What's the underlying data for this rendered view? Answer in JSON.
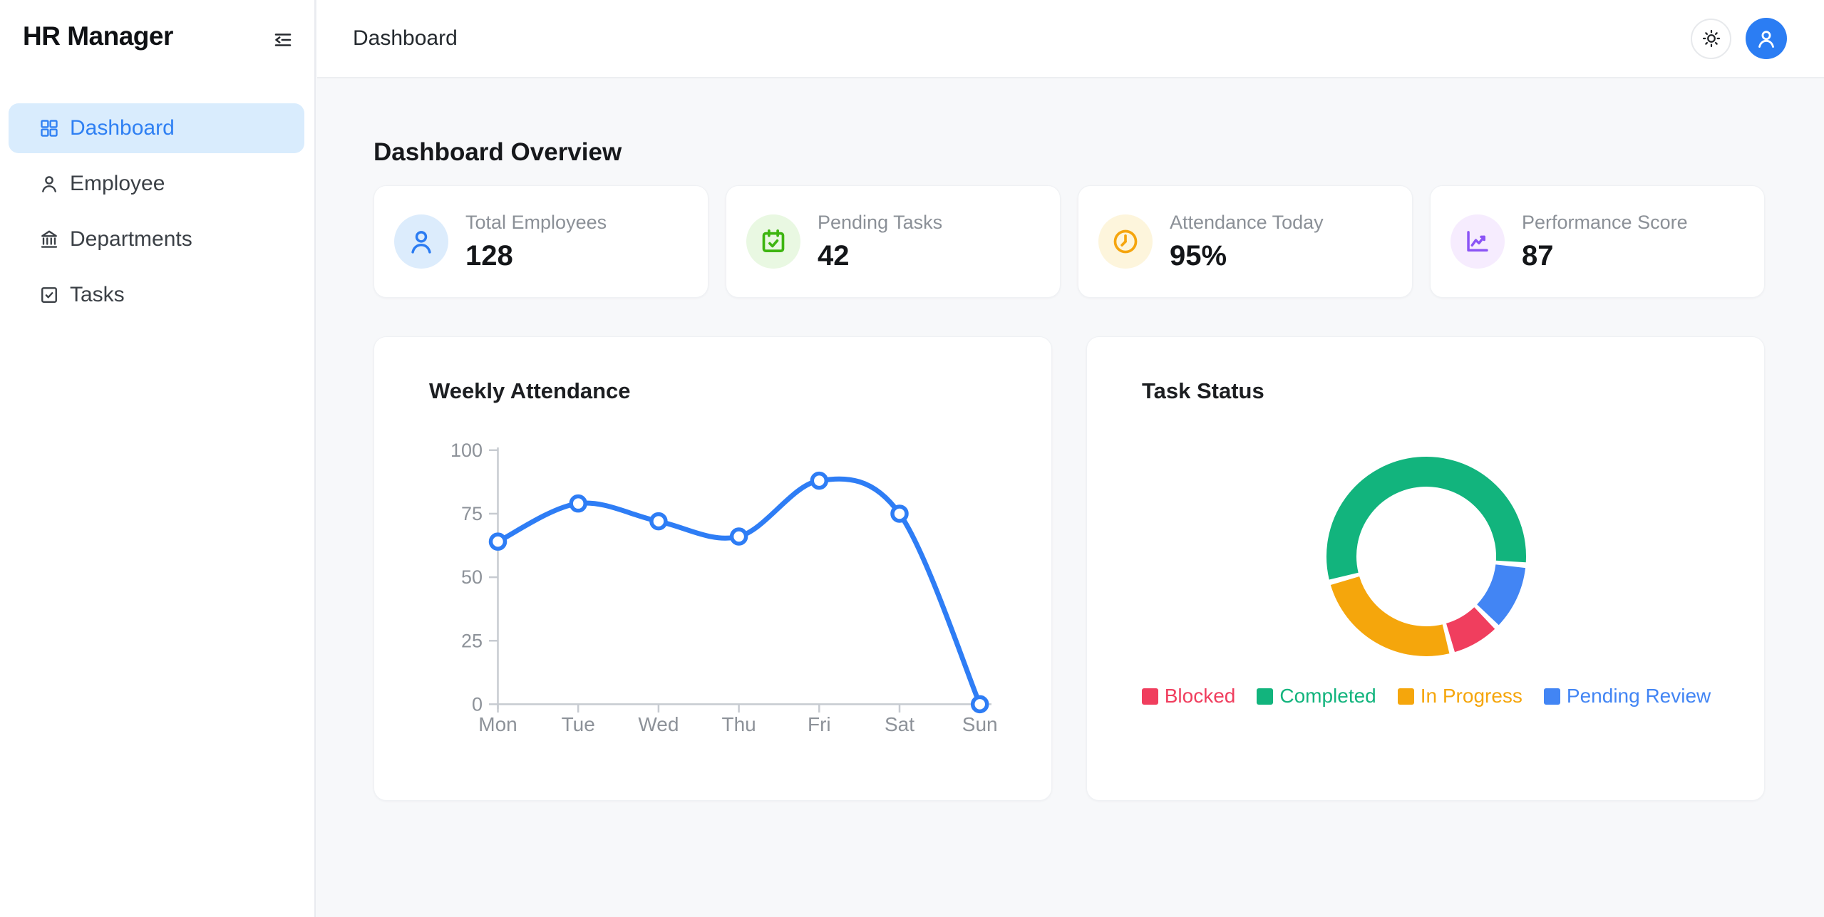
{
  "app": {
    "title": "HR Manager"
  },
  "sidebar": {
    "items": [
      {
        "label": "Dashboard",
        "icon": "dashboard-grid-icon",
        "active": true
      },
      {
        "label": "Employee",
        "icon": "user-icon",
        "active": false
      },
      {
        "label": "Departments",
        "icon": "bank-icon",
        "active": false
      },
      {
        "label": "Tasks",
        "icon": "checkbox-check-icon",
        "active": false
      }
    ]
  },
  "header": {
    "breadcrumb": "Dashboard",
    "actions": [
      {
        "name": "theme-toggle",
        "icon": "sun-icon"
      },
      {
        "name": "user-avatar",
        "icon": "user-icon"
      }
    ]
  },
  "colors": {
    "accent_blue": "#2b7df3",
    "active_item_bg": "#d9ecfd",
    "page_bg": "#f7f8fa",
    "card_bg": "#ffffff"
  },
  "overview": {
    "heading": "Dashboard Overview",
    "stats": [
      {
        "label": "Total Employees",
        "value": "128",
        "icon": "user-icon",
        "icon_color": "#2b7cf2",
        "icon_bg": "#dcecfc"
      },
      {
        "label": "Pending Tasks",
        "value": "42",
        "icon": "calendar-check-icon",
        "icon_color": "#3eb511",
        "icon_bg": "#e9f8e2"
      },
      {
        "label": "Attendance Today",
        "value": "95%",
        "icon": "clock-icon",
        "icon_color": "#f5a50e",
        "icon_bg": "#fdf5dc"
      },
      {
        "label": "Performance Score",
        "value": "87",
        "icon": "line-chart-icon",
        "icon_color": "#8b54f5",
        "icon_bg": "#f6ecfe"
      }
    ]
  },
  "chart_data": [
    {
      "type": "line",
      "title": "Weekly Attendance",
      "x": [
        "Mon",
        "Tue",
        "Wed",
        "Thu",
        "Fri",
        "Sat",
        "Sun"
      ],
      "series": [
        {
          "name": "Attendance",
          "values": [
            64,
            79,
            72,
            66,
            88,
            75,
            0
          ]
        }
      ],
      "xlabel": "",
      "ylabel": "",
      "ylim": [
        0,
        100
      ],
      "yticks": [
        0,
        25,
        50,
        75,
        100
      ],
      "grid": false,
      "legend_position": "none",
      "line_color": "#2e7df5",
      "point_fill": "#ffffff",
      "axis_color": "#c7cbd1",
      "tick_label_color": "#8d9299"
    },
    {
      "type": "pie",
      "subtype": "doughnut",
      "title": "Task Status",
      "segments": [
        {
          "label": "Blocked",
          "value": 3,
          "color": "#f03e5e"
        },
        {
          "label": "Completed",
          "value": 20,
          "color": "#12b47d"
        },
        {
          "label": "In Progress",
          "value": 9,
          "color": "#f5a60c"
        },
        {
          "label": "Pending Review",
          "value": 4,
          "color": "#4285f4"
        }
      ],
      "total": 36,
      "start_angle_deg": 255,
      "clockwise_draw_order": [
        "Completed",
        "Pending Review",
        "Blocked",
        "In Progress"
      ],
      "legend_position": "bottom"
    }
  ]
}
